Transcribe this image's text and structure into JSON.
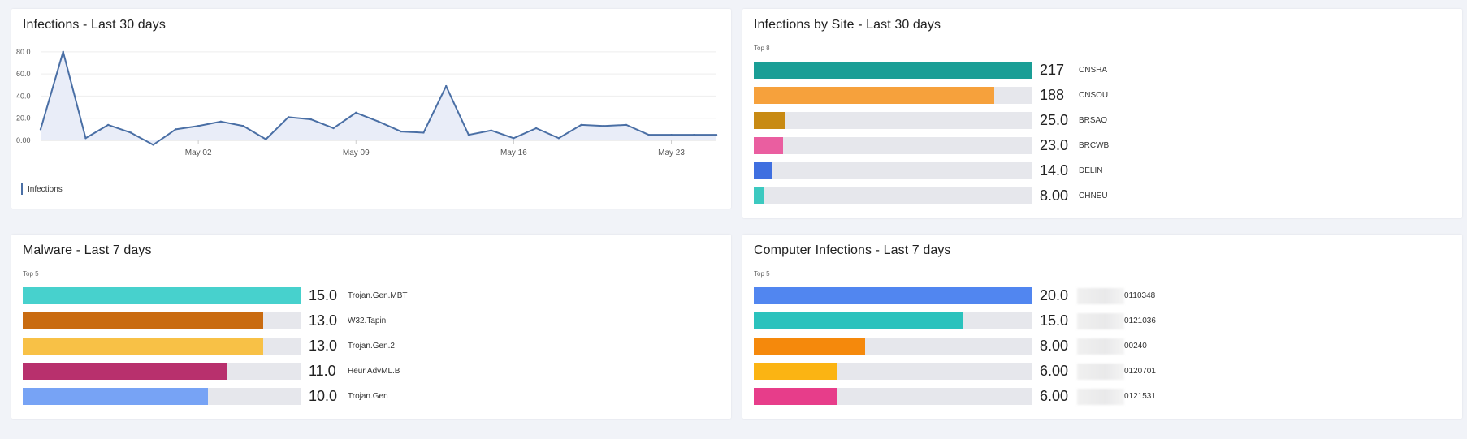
{
  "line_card": {
    "title": "Infections - Last 30 days",
    "legend_label": "Infections",
    "color": "#4a6fa5"
  },
  "site_card": {
    "title": "Infections by Site - Last 30 days",
    "subtitle": "Top 8",
    "max": 217,
    "items": [
      {
        "value": 217,
        "value_label": "217",
        "label": "CNSHA",
        "color": "#1a9e96"
      },
      {
        "value": 188,
        "value_label": "188",
        "label": "CNSOU",
        "color": "#f6a13c"
      },
      {
        "value": 25,
        "value_label": "25.0",
        "label": "BRSAO",
        "color": "#c88a13"
      },
      {
        "value": 23,
        "value_label": "23.0",
        "label": "BRCWB",
        "color": "#ea5ea0"
      },
      {
        "value": 14,
        "value_label": "14.0",
        "label": "DELIN",
        "color": "#3f6fe0"
      },
      {
        "value": 8,
        "value_label": "8.00",
        "label": "CHNEU",
        "color": "#3cc9c0"
      }
    ]
  },
  "malware_card": {
    "title": "Malware - Last 7 days",
    "subtitle": "Top 5",
    "max": 15,
    "items": [
      {
        "value": 15,
        "value_label": "15.0",
        "label": "Trojan.Gen.MBT",
        "color": "#47d1cd"
      },
      {
        "value": 13,
        "value_label": "13.0",
        "label": "W32.Tapin",
        "color": "#c96b10"
      },
      {
        "value": 13,
        "value_label": "13.0",
        "label": "Trojan.Gen.2",
        "color": "#f8c146"
      },
      {
        "value": 11,
        "value_label": "11.0",
        "label": "Heur.AdvML.B",
        "color": "#b8306d"
      },
      {
        "value": 10,
        "value_label": "10.0",
        "label": "Trojan.Gen",
        "color": "#77a3f5"
      }
    ]
  },
  "computer_card": {
    "title": "Computer Infections - Last 7 days",
    "subtitle": "Top 5",
    "max": 20,
    "items": [
      {
        "value": 20,
        "value_label": "20.0",
        "label": "0110348",
        "color": "#5186f0"
      },
      {
        "value": 15,
        "value_label": "15.0",
        "label": "0121036",
        "color": "#2bc2bd"
      },
      {
        "value": 8,
        "value_label": "8.00",
        "label": "00240",
        "color": "#f5890c"
      },
      {
        "value": 6,
        "value_label": "6.00",
        "label": "0120701",
        "color": "#fbb413"
      },
      {
        "value": 6,
        "value_label": "6.00",
        "label": "0121531",
        "color": "#e73d8a"
      }
    ]
  },
  "chart_data": [
    {
      "type": "area",
      "title": "Infections - Last 30 days",
      "xlabel": "",
      "ylabel": "",
      "x_ticks": [
        "May 02",
        "May 09",
        "May 16",
        "May 23"
      ],
      "y_ticks": [
        "0.00",
        "20.0",
        "40.0",
        "60.0",
        "80.0"
      ],
      "ylim": [
        0,
        85
      ],
      "grid": true,
      "legend": "bottom-left",
      "x": [
        "Apr 25",
        "Apr 26",
        "Apr 27",
        "Apr 28",
        "Apr 29",
        "Apr 30",
        "May 01",
        "May 02",
        "May 03",
        "May 04",
        "May 05",
        "May 06",
        "May 07",
        "May 08",
        "May 09",
        "May 10",
        "May 11",
        "May 12",
        "May 13",
        "May 14",
        "May 15",
        "May 16",
        "May 17",
        "May 18",
        "May 19",
        "May 20",
        "May 21",
        "May 22",
        "May 23",
        "May 24",
        "May 25"
      ],
      "series": [
        {
          "name": "Infections",
          "values": [
            10,
            80,
            2,
            14,
            7,
            -4,
            10,
            13,
            17,
            13,
            1,
            21,
            19,
            11,
            25,
            17,
            8,
            7,
            49,
            5,
            9,
            2,
            11,
            2,
            14,
            13,
            14,
            5,
            5,
            5,
            5
          ]
        }
      ]
    },
    {
      "type": "bar",
      "orientation": "horizontal",
      "title": "Infections by Site - Last 30 days",
      "categories": [
        "CNSHA",
        "CNSOU",
        "BRSAO",
        "BRCWB",
        "DELIN",
        "CHNEU"
      ],
      "values": [
        217,
        188,
        25,
        23,
        14,
        8
      ]
    },
    {
      "type": "bar",
      "orientation": "horizontal",
      "title": "Malware - Last 7 days",
      "categories": [
        "Trojan.Gen.MBT",
        "W32.Tapin",
        "Trojan.Gen.2",
        "Heur.AdvML.B",
        "Trojan.Gen"
      ],
      "values": [
        15,
        13,
        13,
        11,
        10
      ]
    },
    {
      "type": "bar",
      "orientation": "horizontal",
      "title": "Computer Infections - Last 7 days",
      "categories": [
        "0110348",
        "0121036",
        "00240",
        "0120701",
        "0121531"
      ],
      "values": [
        20,
        15,
        8,
        6,
        6
      ]
    }
  ]
}
